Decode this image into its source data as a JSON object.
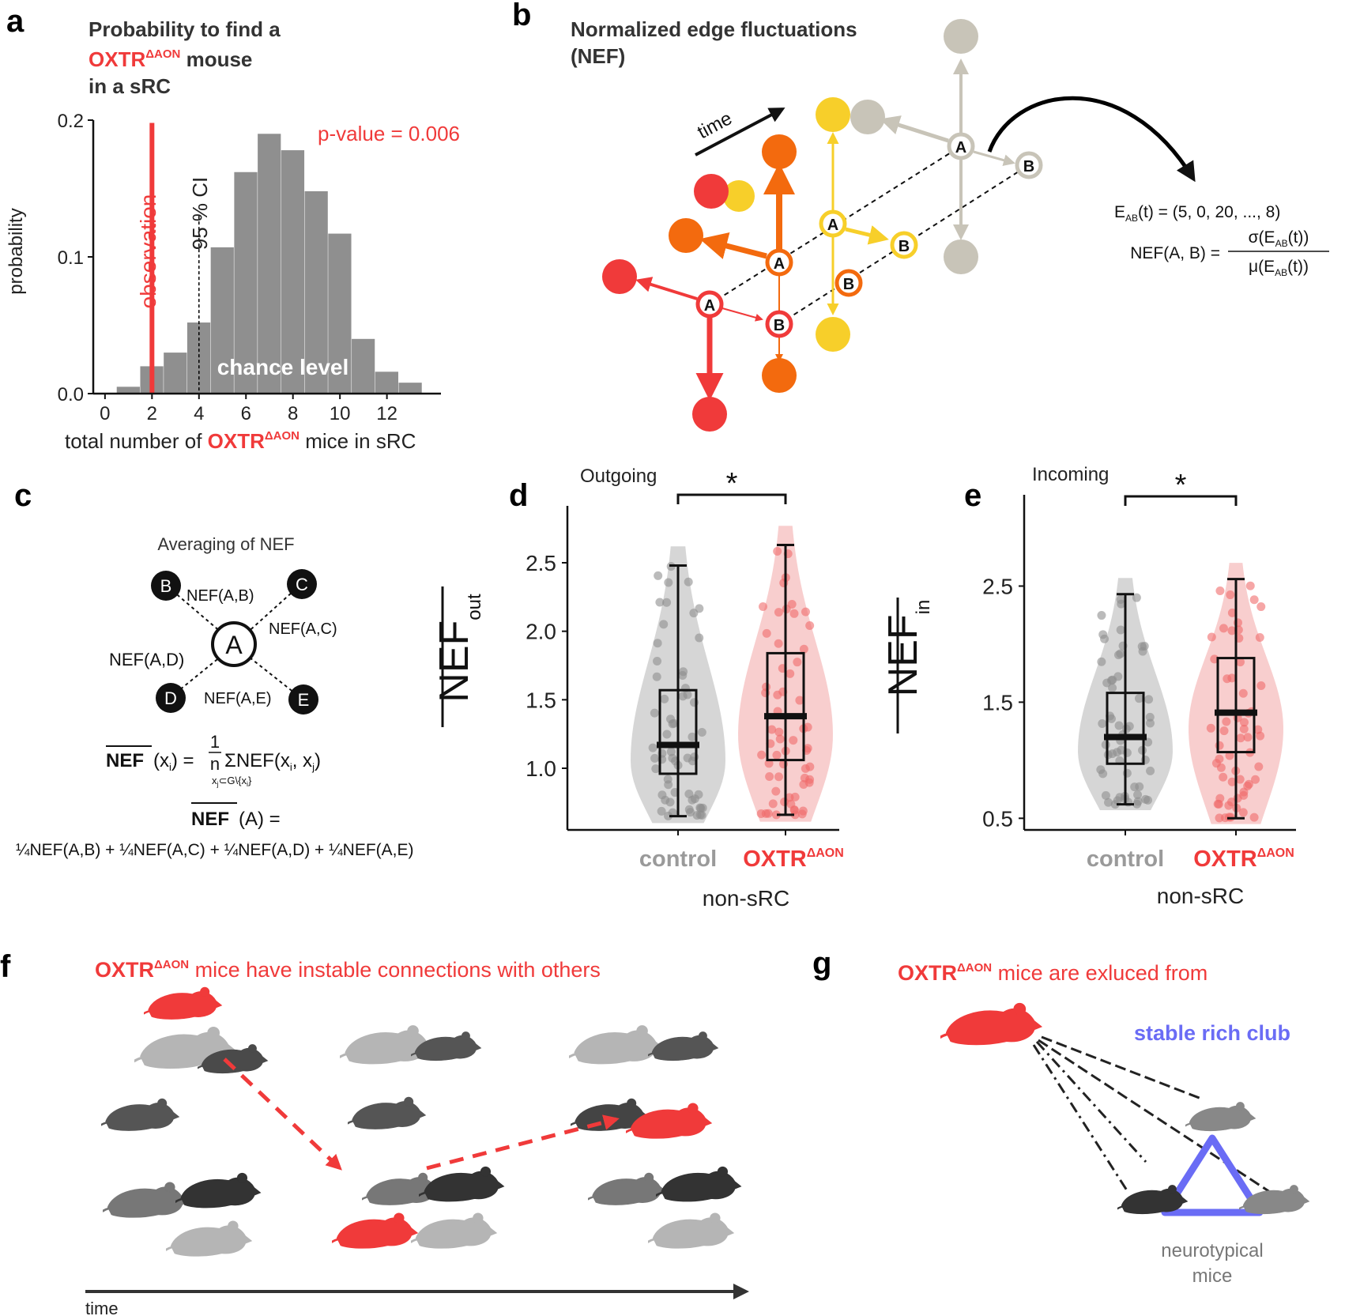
{
  "colors": {
    "red": "#f03a3a",
    "orange": "#f36a0e",
    "yellow": "#f7cf2a",
    "gray_node": "#c8c4b8",
    "hist_bar": "#8f8f8f",
    "blue": "#6a6cf5",
    "control_gray": "#9a9a9a"
  },
  "panel_labels": {
    "a": "a",
    "b": "b",
    "c": "c",
    "d": "d",
    "e": "e",
    "f": "f",
    "g": "g"
  },
  "panel_a": {
    "title_line1": "Probability to find a",
    "title_line2_strain": "OXTR",
    "title_line2_sup": "ΔAON",
    "title_line2_rest": " mouse",
    "title_line3": "in a sRC",
    "pvalue": "p-value = 0.006",
    "ci_label": "95 % CI",
    "observation_label": "observation",
    "chance_label": "chance level",
    "xlabel_pre": "total number of ",
    "xlabel_strain": "OXTR",
    "xlabel_sup": "ΔAON",
    "xlabel_post": " mice in sRC",
    "ylabel": "probability"
  },
  "panel_b": {
    "title_line1": "Normalized edge fluctuations",
    "title_line2": "(NEF)",
    "time_label": "time",
    "node_a": "A",
    "node_b": "B",
    "eab_label": "E",
    "eab_sub": "AB",
    "eab_rest": "(t) = (5, 0, 20, ..., 8)",
    "nef_lhs": "NEF(A, B) =",
    "nef_num": "σ(E",
    "nef_num_sub": "AB",
    "nef_num_rest": "(t))",
    "nef_den": "μ(E",
    "nef_den_sub": "AB",
    "nef_den_rest": "(t))"
  },
  "panel_c": {
    "title": "Averaging of NEF",
    "center": "A",
    "nodes": [
      "B",
      "C",
      "D",
      "E"
    ],
    "edge_labels": [
      "NEF(A,B)",
      "NEF(A,C)",
      "NEF(A,D)",
      "NEF(A,E)"
    ],
    "formula1_lhs": "NEF",
    "formula1_arg": "(x",
    "formula1_arg_sub": "i",
    "formula1_eq": ") = ",
    "formula1_frac_num": "1",
    "formula1_frac_den": "n",
    "formula1_sum": "ΣNEF(x",
    "formula1_sum_sub1": "i",
    "formula1_sum_mid": ", x",
    "formula1_sum_sub2": "j",
    "formula1_sum_end": ")",
    "formula1_under": "x",
    "formula1_under_sub": "j",
    "formula1_under_rest": "⊂G\\{x",
    "formula1_under_sub2": "i",
    "formula1_under_end": "}",
    "formula2_lhs": "NEF",
    "formula2_rest": "(A) =",
    "formula3": "¼NEF(A,B) + ¼NEF(A,C) + ¼NEF(A,D) + ¼NEF(A,E)"
  },
  "panel_d": {
    "subtitle": "Outgoing",
    "significance": "*",
    "ylabel_main": "NEF",
    "ylabel_sub": "out",
    "group_label": "non-sRC"
  },
  "panel_e": {
    "subtitle": "Incoming",
    "significance": "*",
    "ylabel_main": "NEF",
    "ylabel_sub": "in",
    "group_label": "non-sRC"
  },
  "panel_f": {
    "caption_strain": "OXTR",
    "caption_sup": "ΔAON",
    "caption_rest": " mice have instable connections with others",
    "time_label": "time"
  },
  "panel_g": {
    "caption_strain": "OXTR",
    "caption_sup": "ΔAON",
    "caption_rest": " mice are exluced from",
    "club_label": "stable rich club",
    "neuro_line1": "neurotypical",
    "neuro_line2": "mice"
  },
  "chart_data": [
    {
      "panel": "a",
      "type": "bar",
      "x_bins": [
        1,
        2,
        3,
        4,
        5,
        6,
        7,
        8,
        9,
        10,
        11,
        12,
        13
      ],
      "values": [
        0.005,
        0.02,
        0.03,
        0.052,
        0.107,
        0.162,
        0.19,
        0.178,
        0.148,
        0.117,
        0.04,
        0.016,
        0.008
      ],
      "x_ticks": [
        "0",
        "2",
        "4",
        "6",
        "8",
        "10",
        "12"
      ],
      "y_ticks": [
        "0.0",
        "0.1",
        "0.2"
      ],
      "xlim": [
        -0.5,
        14.3
      ],
      "ylim": [
        0,
        0.2
      ],
      "observation": 2,
      "ci95": 4,
      "xlabel": "total number of OXTRΔAON mice in sRC",
      "ylabel": "probability"
    },
    {
      "panel": "d",
      "type": "box",
      "ylabel": "NEF out",
      "y_ticks": [
        "1.0",
        "1.5",
        "2.0",
        "2.5"
      ],
      "ylim": [
        0.55,
        2.8
      ],
      "categories": [
        "control",
        "OXTRΔAON"
      ],
      "series": [
        {
          "name": "control",
          "median": 1.17,
          "q1": 0.96,
          "q3": 1.57,
          "whisker_low": 0.65,
          "whisker_high": 2.48
        },
        {
          "name": "OXTRΔAON",
          "median": 1.38,
          "q1": 1.06,
          "q3": 1.84,
          "whisker_low": 0.66,
          "whisker_high": 2.63
        }
      ]
    },
    {
      "panel": "e",
      "type": "box",
      "ylabel": "NEF in",
      "y_ticks": [
        "0.5",
        "1.5",
        "2.5"
      ],
      "ylim": [
        0.4,
        3.15
      ],
      "categories": [
        "control",
        "OXTRΔAON"
      ],
      "series": [
        {
          "name": "control",
          "median": 1.2,
          "q1": 0.97,
          "q3": 1.58,
          "whisker_low": 0.62,
          "whisker_high": 2.43
        },
        {
          "name": "OXTRΔAON",
          "median": 1.41,
          "q1": 1.07,
          "q3": 1.88,
          "whisker_low": 0.5,
          "whisker_high": 2.56
        }
      ]
    }
  ]
}
